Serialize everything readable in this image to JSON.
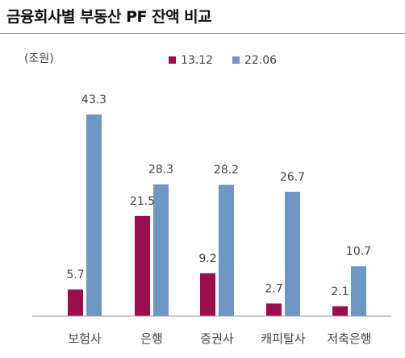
{
  "title": "금융회사별 부동산 PF 잔액 비교",
  "colors": {
    "series_13_12": "#9b0d4b",
    "series_22_06": "#6f97c4",
    "axis": "#9a9a9a",
    "text": "#444444"
  },
  "chart_data": {
    "type": "bar",
    "title": "금융회사별 부동산 PF 잔액 비교",
    "unit_label": "(조원)",
    "categories": [
      "보험사",
      "은행",
      "증권사",
      "캐피탈사",
      "저축은행"
    ],
    "series": [
      {
        "name": "13.12",
        "values": [
          5.7,
          21.5,
          9.2,
          2.7,
          2.1
        ]
      },
      {
        "name": "22.06",
        "values": [
          43.3,
          28.3,
          28.2,
          26.7,
          10.7
        ]
      }
    ],
    "value_labels": [
      [
        "5.7",
        "21.5",
        "9.2",
        "2.7",
        "2.1"
      ],
      [
        "43.3",
        "28.3",
        "28.2",
        "26.7",
        "10.7"
      ]
    ],
    "ylim": [
      0,
      50
    ],
    "grid": false,
    "legend_position": "top-center"
  }
}
